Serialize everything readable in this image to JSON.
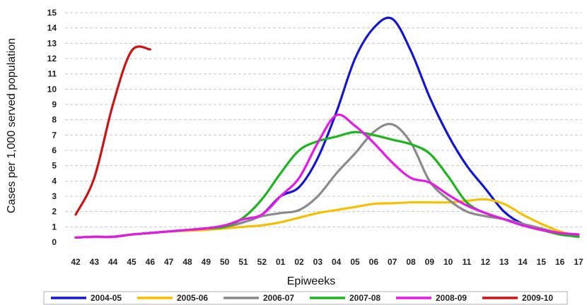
{
  "chart_data": {
    "type": "line",
    "title": "",
    "xlabel": "Epiweeks",
    "ylabel": "Cases per 1,000 served population",
    "ylim": [
      0,
      15
    ],
    "yticks": [
      0,
      1,
      2,
      3,
      4,
      5,
      6,
      7,
      8,
      9,
      10,
      11,
      12,
      13,
      14,
      15
    ],
    "categories": [
      "42",
      "43",
      "44",
      "45",
      "46",
      "47",
      "48",
      "49",
      "50",
      "51",
      "52",
      "01",
      "02",
      "03",
      "04",
      "05",
      "06",
      "07",
      "08",
      "09",
      "10",
      "11",
      "12",
      "13",
      "14",
      "15",
      "16",
      "17"
    ],
    "grid": "horizontal-dashed",
    "legend_position": "bottom",
    "series": [
      {
        "name": "2004-05",
        "color": "#1515d6",
        "values": [
          0.3,
          0.35,
          0.35,
          0.5,
          0.6,
          0.7,
          0.8,
          0.9,
          1.0,
          1.3,
          1.8,
          3.0,
          3.6,
          5.5,
          8.5,
          12.0,
          14.0,
          14.6,
          12.5,
          9.5,
          7.0,
          5.0,
          3.5,
          2.0,
          1.2,
          0.8,
          0.6,
          0.5
        ]
      },
      {
        "name": "2005-06",
        "color": "#f5c000",
        "values": [
          0.3,
          0.35,
          0.35,
          0.5,
          0.6,
          0.7,
          0.75,
          0.8,
          0.9,
          1.0,
          1.1,
          1.3,
          1.6,
          1.9,
          2.1,
          2.3,
          2.5,
          2.55,
          2.6,
          2.6,
          2.6,
          2.7,
          2.8,
          2.5,
          1.8,
          1.2,
          0.7,
          0.4
        ]
      },
      {
        "name": "2006-07",
        "color": "#8a8a8a",
        "values": [
          0.3,
          0.35,
          0.35,
          0.5,
          0.6,
          0.7,
          0.8,
          0.9,
          1.0,
          1.3,
          1.7,
          1.9,
          2.1,
          3.0,
          4.5,
          5.8,
          7.2,
          7.7,
          6.5,
          4.0,
          2.8,
          2.0,
          1.7,
          1.5,
          1.2,
          0.9,
          0.6,
          0.5
        ]
      },
      {
        "name": "2007-08",
        "color": "#1db51d",
        "values": [
          0.3,
          0.35,
          0.35,
          0.5,
          0.6,
          0.7,
          0.8,
          0.9,
          1.0,
          1.6,
          2.8,
          4.5,
          6.0,
          6.6,
          6.9,
          7.2,
          7.0,
          6.7,
          6.4,
          5.8,
          4.3,
          2.6,
          1.9,
          1.5,
          1.1,
          0.8,
          0.5,
          0.35
        ]
      },
      {
        "name": "2008-09",
        "color": "#e619e6",
        "values": [
          0.3,
          0.35,
          0.35,
          0.5,
          0.6,
          0.7,
          0.8,
          0.9,
          1.1,
          1.5,
          1.8,
          3.0,
          4.2,
          6.5,
          8.3,
          7.6,
          6.5,
          5.2,
          4.2,
          3.9,
          3.1,
          2.4,
          1.9,
          1.5,
          1.1,
          0.8,
          0.6,
          0.5
        ]
      },
      {
        "name": "2009-10",
        "color": "#cc1414",
        "values": [
          1.8,
          4.2,
          9.0,
          12.5,
          12.6,
          null,
          null,
          null,
          null,
          null,
          null,
          null,
          null,
          null,
          null,
          null,
          null,
          null,
          null,
          null,
          null,
          null,
          null,
          null,
          null,
          null,
          null,
          null
        ]
      }
    ]
  }
}
